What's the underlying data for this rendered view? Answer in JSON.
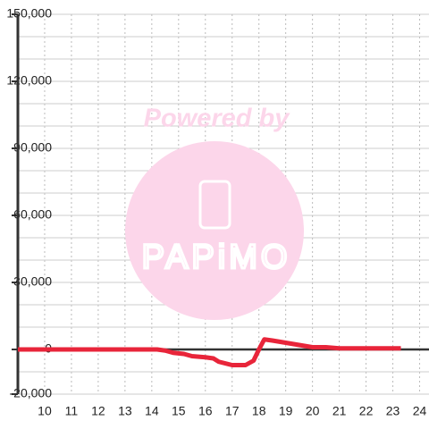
{
  "chart_data": {
    "type": "line",
    "watermark": {
      "top": "Powered by",
      "logo": "PAPiMO"
    },
    "x": [
      9,
      14.2,
      14.5,
      14.8,
      15.2,
      15.5,
      16,
      16.3,
      16.5,
      17,
      17.5,
      17.8,
      18,
      18.2,
      18.5,
      19,
      19.5,
      20,
      20.5,
      21,
      22,
      23.3
    ],
    "series": [
      {
        "color": "#e8253a",
        "values": [
          0,
          0,
          -500,
          -1500,
          -2000,
          -3000,
          -3500,
          -4000,
          -5500,
          -7000,
          -7000,
          -5000,
          0,
          4500,
          4000,
          3000,
          2000,
          1000,
          1000,
          500,
          500,
          500
        ]
      }
    ],
    "xlim": [
      9,
      24.35
    ],
    "xticks": [
      10,
      11,
      12,
      13,
      14,
      15,
      16,
      17,
      18,
      19,
      20,
      21,
      22,
      23,
      24
    ],
    "ylim": [
      -20000,
      150000
    ],
    "yticks": [
      {
        "value": -20000,
        "label": "-20,000"
      },
      0,
      {
        "value": 30000,
        "label": "30,000"
      },
      {
        "value": 60000,
        "label": "60,000"
      },
      {
        "value": 90000,
        "label": "90,000"
      },
      {
        "value": 120000,
        "label": "120,000"
      },
      {
        "value": 150000,
        "label": "150,000"
      }
    ],
    "y_minor_ticks": [
      -10000,
      10000,
      20000,
      40000,
      50000,
      70000,
      80000,
      100000,
      110000,
      130000,
      140000
    ],
    "grid": true
  }
}
